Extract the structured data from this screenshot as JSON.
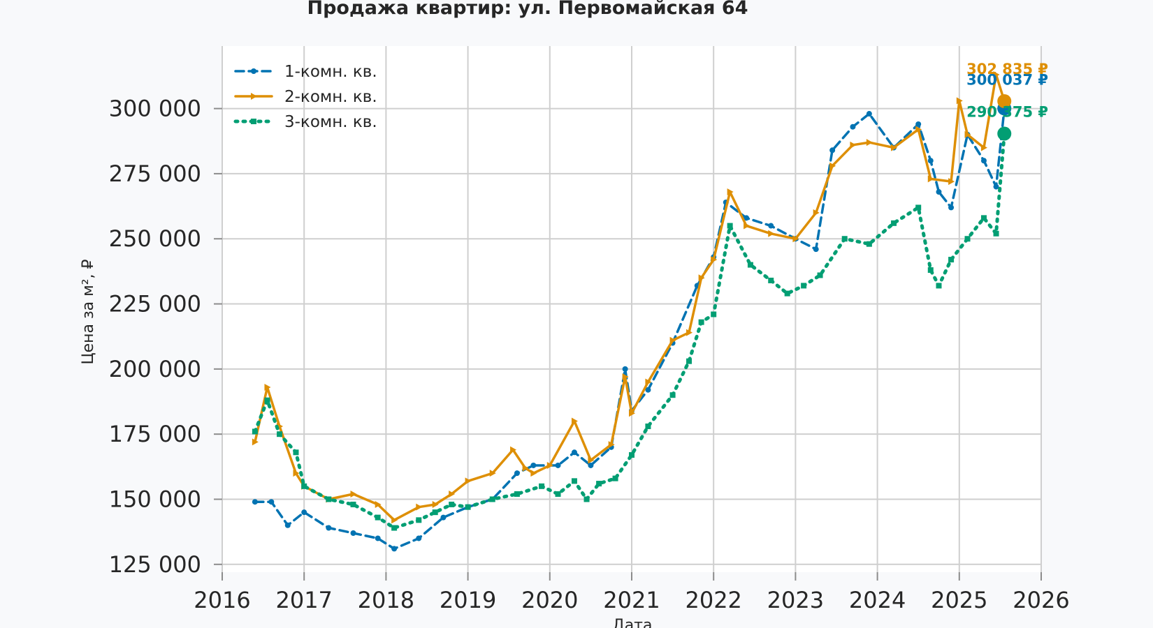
{
  "chart_data": {
    "type": "line",
    "title": "Продажа квартир: ул. Первомайская 64",
    "xlabel": "Дата",
    "ylabel": "Цена за м², ₽",
    "xlim": [
      2016,
      2026
    ],
    "ylim": [
      122000,
      324000
    ],
    "x_ticks": [
      2016,
      2017,
      2018,
      2019,
      2020,
      2021,
      2022,
      2023,
      2024,
      2025,
      2026
    ],
    "x_tick_labels": [
      "2016",
      "2017",
      "2018",
      "2019",
      "2020",
      "2021",
      "2022",
      "2023",
      "2024",
      "2025",
      "2026"
    ],
    "y_ticks": [
      125000,
      150000,
      175000,
      200000,
      225000,
      250000,
      275000,
      300000
    ],
    "y_tick_labels": [
      "125 000",
      "150 000",
      "175 000",
      "200 000",
      "225 000",
      "250 000",
      "275 000",
      "300 000"
    ],
    "grid": true,
    "legend_position": "top-left",
    "series": [
      {
        "name": "1-комн. кв.",
        "color": "#0173b2",
        "line_style": "dashed",
        "marker": "circle",
        "end_label": "300 037 ₽",
        "x": [
          2016.4,
          2016.6,
          2016.8,
          2017.0,
          2017.3,
          2017.6,
          2017.9,
          2018.1,
          2018.4,
          2018.7,
          2019.0,
          2019.3,
          2019.6,
          2019.8,
          2020.1,
          2020.3,
          2020.5,
          2020.75,
          2020.92,
          2021.0,
          2021.2,
          2021.5,
          2021.8,
          2022.0,
          2022.15,
          2022.4,
          2022.7,
          2023.0,
          2023.25,
          2023.45,
          2023.7,
          2023.9,
          2024.2,
          2024.5,
          2024.65,
          2024.75,
          2024.9,
          2025.1,
          2025.3,
          2025.45,
          2025.55
        ],
        "y": [
          149000,
          149000,
          140000,
          145000,
          139000,
          137000,
          135000,
          131000,
          135000,
          143000,
          147000,
          150000,
          160000,
          163000,
          163000,
          168000,
          163000,
          170000,
          200000,
          184000,
          192000,
          210000,
          232000,
          243000,
          264000,
          258000,
          255000,
          250000,
          246000,
          284000,
          293000,
          298000,
          285000,
          294000,
          280000,
          268000,
          262000,
          290000,
          280000,
          270000,
          300037
        ]
      },
      {
        "name": "2-комн. кв.",
        "color": "#de8f05",
        "line_style": "solid",
        "marker": "triangle-right",
        "end_label": "302 835 ₽",
        "x": [
          2016.4,
          2016.55,
          2016.7,
          2016.9,
          2017.0,
          2017.3,
          2017.6,
          2017.9,
          2018.1,
          2018.4,
          2018.6,
          2018.8,
          2019.0,
          2019.3,
          2019.55,
          2019.7,
          2019.8,
          2020.0,
          2020.3,
          2020.5,
          2020.75,
          2020.92,
          2021.0,
          2021.2,
          2021.5,
          2021.7,
          2021.85,
          2022.0,
          2022.2,
          2022.4,
          2022.7,
          2023.0,
          2023.25,
          2023.45,
          2023.7,
          2023.9,
          2024.2,
          2024.5,
          2024.65,
          2024.9,
          2025.0,
          2025.1,
          2025.3,
          2025.45,
          2025.55
        ],
        "y": [
          172000,
          193000,
          178000,
          160000,
          155000,
          150000,
          152000,
          148000,
          142000,
          147000,
          148000,
          152000,
          157000,
          160000,
          169000,
          162000,
          160000,
          163000,
          180000,
          165000,
          171000,
          197000,
          183000,
          195000,
          211000,
          214000,
          235000,
          242000,
          268000,
          255000,
          252000,
          250000,
          260000,
          278000,
          286000,
          287000,
          285000,
          292000,
          273000,
          272000,
          303000,
          290000,
          285000,
          313000,
          302835
        ]
      },
      {
        "name": "3-комн. кв.",
        "color": "#029e73",
        "line_style": "dotted",
        "marker": "square",
        "end_label": "290 375 ₽",
        "x": [
          2016.4,
          2016.55,
          2016.7,
          2016.9,
          2017.0,
          2017.3,
          2017.6,
          2017.9,
          2018.1,
          2018.4,
          2018.6,
          2018.8,
          2019.0,
          2019.3,
          2019.6,
          2019.9,
          2020.1,
          2020.3,
          2020.45,
          2020.6,
          2020.8,
          2021.0,
          2021.2,
          2021.5,
          2021.7,
          2021.85,
          2022.0,
          2022.2,
          2022.45,
          2022.7,
          2022.9,
          2023.1,
          2023.3,
          2023.6,
          2023.9,
          2024.2,
          2024.5,
          2024.65,
          2024.75,
          2024.9,
          2025.1,
          2025.3,
          2025.45,
          2025.55
        ],
        "y": [
          176000,
          188000,
          175000,
          168000,
          155000,
          150000,
          148000,
          143000,
          139000,
          142000,
          145000,
          148000,
          147000,
          150000,
          152000,
          155000,
          152000,
          157000,
          150000,
          156000,
          158000,
          167000,
          178000,
          190000,
          203000,
          218000,
          221000,
          255000,
          240000,
          234000,
          229000,
          232000,
          236000,
          250000,
          248000,
          256000,
          262000,
          238000,
          232000,
          242000,
          250000,
          258000,
          252000,
          290375
        ]
      }
    ]
  }
}
